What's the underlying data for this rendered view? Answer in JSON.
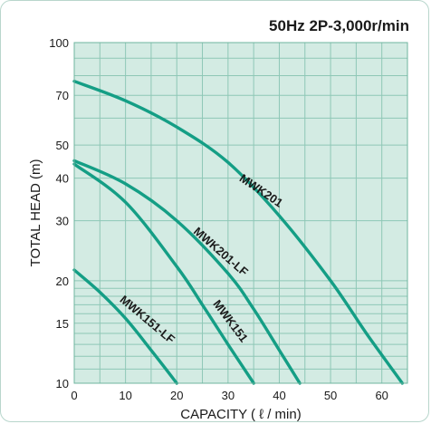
{
  "chart_data": {
    "type": "line",
    "title": "50Hz 2P-3,000r/min",
    "xlabel": "CAPACITY ( ℓ / min)",
    "ylabel": "TOTAL HEAD (m)",
    "xlim": [
      0,
      65
    ],
    "ylim": [
      10,
      100
    ],
    "yscale": "log",
    "grid": true,
    "x_ticks": [
      0,
      10,
      20,
      30,
      40,
      50,
      60
    ],
    "y_ticks": [
      10,
      15,
      20,
      30,
      40,
      50,
      70,
      100
    ],
    "colors": {
      "line": "#149e85",
      "plot_bg": "#d3ebe3",
      "grid": "#8ec7b6"
    },
    "series": [
      {
        "name": "MWK201",
        "x": [
          0,
          10,
          20,
          30,
          40,
          50,
          57,
          64
        ],
        "y": [
          77,
          67.5,
          56.5,
          44.5,
          31,
          20,
          14,
          10
        ]
      },
      {
        "name": "MWK201-LF",
        "x": [
          0,
          10,
          20,
          30,
          35,
          40,
          44
        ],
        "y": [
          45,
          38.5,
          30,
          21,
          16.5,
          12.5,
          10
        ]
      },
      {
        "name": "MWK151",
        "x": [
          0,
          10,
          20,
          25,
          30,
          35
        ],
        "y": [
          44,
          34,
          22,
          17,
          13,
          10
        ]
      },
      {
        "name": "MWK151-LF",
        "x": [
          0,
          5,
          10,
          15,
          20
        ],
        "y": [
          21.5,
          18.5,
          15.5,
          12.5,
          10
        ]
      }
    ]
  }
}
